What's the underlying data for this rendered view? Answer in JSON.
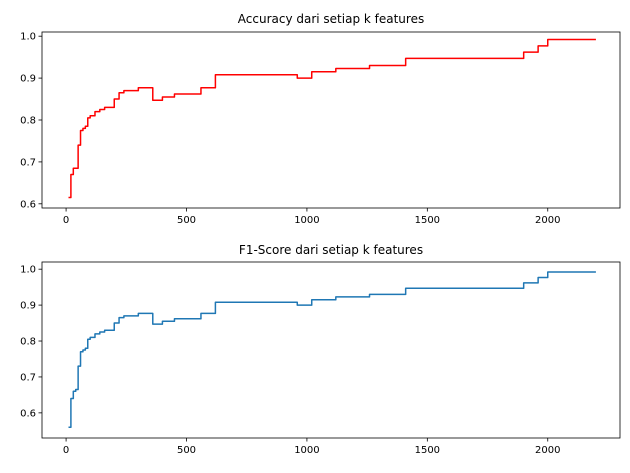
{
  "chart_data": [
    {
      "type": "line",
      "title": "Accuracy dari setiap k features",
      "xlabel": "",
      "ylabel": "",
      "xlim": [
        -100,
        2300
      ],
      "ylim": [
        0.59,
        1.01
      ],
      "xticks": [
        0,
        500,
        1000,
        1500,
        2000
      ],
      "yticks": [
        0.6,
        0.7,
        0.8,
        0.9,
        1.0
      ],
      "ytick_labels": [
        "0.6",
        "0.7",
        "0.8",
        "0.9",
        "1.0"
      ],
      "grid": false,
      "color": "#ff0000",
      "step": true,
      "x": [
        10,
        20,
        30,
        40,
        50,
        60,
        70,
        80,
        90,
        100,
        120,
        140,
        160,
        180,
        200,
        220,
        240,
        260,
        300,
        340,
        360,
        400,
        450,
        500,
        560,
        620,
        680,
        760,
        960,
        1020,
        1120,
        1260,
        1410,
        1500,
        1700,
        1900,
        1960,
        2000,
        2200
      ],
      "y": [
        0.615,
        0.67,
        0.685,
        0.685,
        0.74,
        0.775,
        0.78,
        0.785,
        0.805,
        0.81,
        0.82,
        0.825,
        0.83,
        0.83,
        0.85,
        0.865,
        0.87,
        0.87,
        0.877,
        0.877,
        0.847,
        0.855,
        0.862,
        0.862,
        0.877,
        0.908,
        0.908,
        0.908,
        0.9,
        0.915,
        0.923,
        0.93,
        0.947,
        0.947,
        0.947,
        0.962,
        0.977,
        0.992,
        0.992
      ]
    },
    {
      "type": "line",
      "title": "F1-Score dari setiap k features",
      "xlabel": "",
      "ylabel": "",
      "xlim": [
        -100,
        2300
      ],
      "ylim": [
        0.53,
        1.02
      ],
      "xticks": [
        0,
        500,
        1000,
        1500,
        2000
      ],
      "yticks": [
        0.6,
        0.7,
        0.8,
        0.9,
        1.0
      ],
      "ytick_labels": [
        "0.6",
        "0.7",
        "0.8",
        "0.9",
        "1.0"
      ],
      "grid": false,
      "color": "#1f77b4",
      "step": true,
      "x": [
        10,
        20,
        30,
        40,
        50,
        60,
        70,
        80,
        90,
        100,
        120,
        140,
        160,
        180,
        200,
        220,
        240,
        260,
        300,
        340,
        360,
        400,
        450,
        500,
        560,
        620,
        680,
        760,
        960,
        1020,
        1120,
        1260,
        1410,
        1500,
        1700,
        1900,
        1960,
        2000,
        2200
      ],
      "y": [
        0.56,
        0.64,
        0.66,
        0.665,
        0.73,
        0.77,
        0.775,
        0.78,
        0.805,
        0.81,
        0.82,
        0.825,
        0.83,
        0.83,
        0.85,
        0.865,
        0.87,
        0.87,
        0.877,
        0.877,
        0.847,
        0.855,
        0.862,
        0.862,
        0.877,
        0.908,
        0.908,
        0.908,
        0.9,
        0.915,
        0.923,
        0.93,
        0.947,
        0.947,
        0.947,
        0.962,
        0.977,
        0.992,
        0.992
      ]
    }
  ]
}
